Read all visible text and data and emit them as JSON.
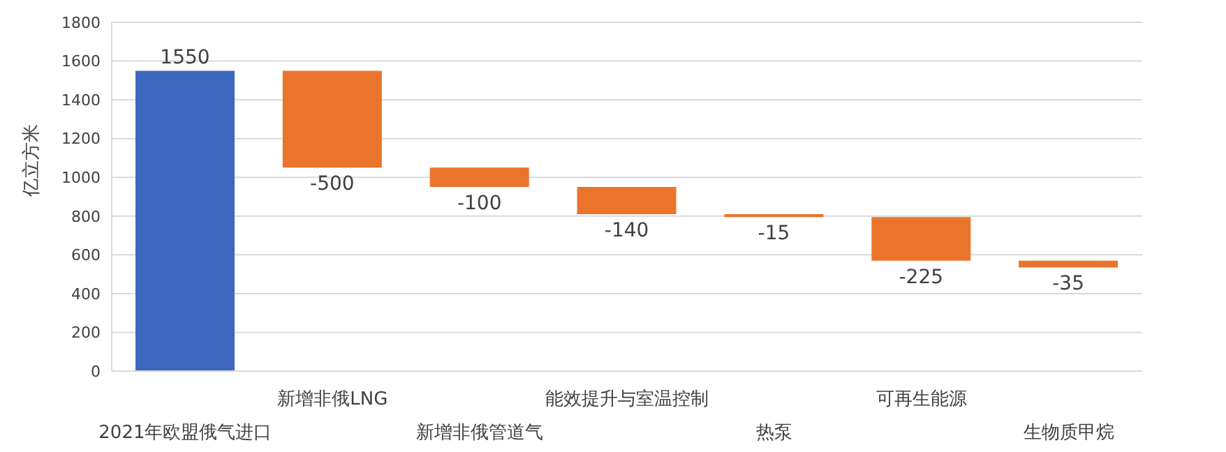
{
  "chart_data": {
    "type": "bar",
    "ylabel": "亿立方米",
    "categories": [
      "2021年欧盟俄气进口",
      "新增非俄LNG",
      "新增非俄管道气",
      "能效提升与室温控制",
      "热泵",
      "可再生能源",
      "生物质甲烷"
    ],
    "values": [
      1550,
      -500,
      -100,
      -140,
      -15,
      -225,
      -35
    ],
    "base": [
      0,
      1550,
      1050,
      950,
      810,
      795,
      570
    ],
    "colors": [
      "#3e68bf",
      "#eb742d",
      "#eb742d",
      "#eb742d",
      "#eb742d",
      "#eb742d",
      "#eb742d"
    ],
    "ylim": [
      0,
      1800
    ],
    "yticks": [
      0,
      200,
      400,
      600,
      800,
      1000,
      1200,
      1400,
      1600,
      1800
    ],
    "grid": "y",
    "data_labels": true,
    "legend": false
  }
}
